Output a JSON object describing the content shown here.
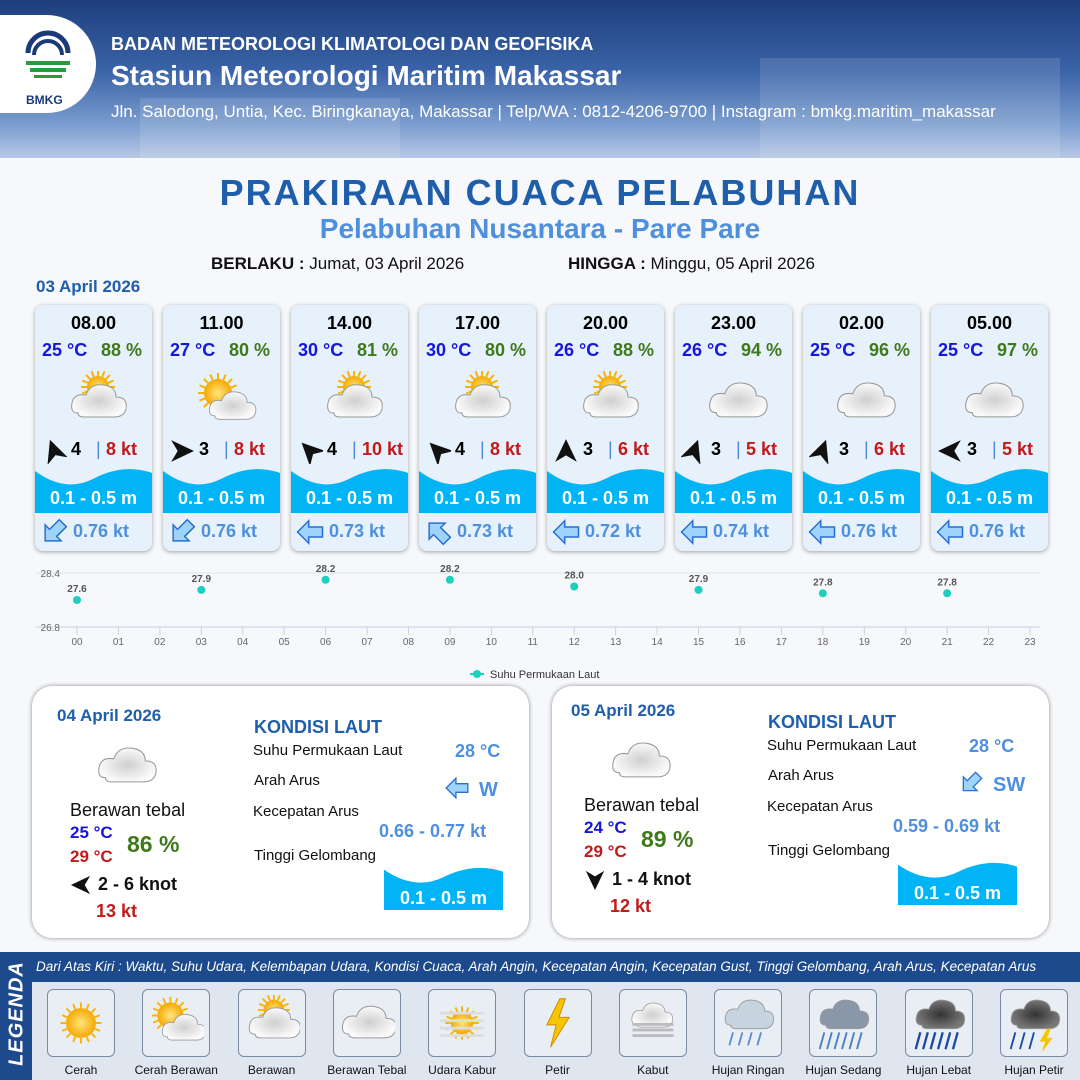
{
  "header": {
    "agency": "BADAN METEOROLOGI KLIMATOLOGI DAN GEOFISIKA",
    "station": "Stasiun Meteorologi Maritim Makassar",
    "address": "Jln. Salodong, Untia, Kec. Biringkanaya, Makassar | Telp/WA : 0812-4206-9700 | Instagram : bmkg.maritim_makassar",
    "logo_text": "BMKG"
  },
  "title": "PRAKIRAAN CUACA PELABUHAN",
  "subtitle": "Pelabuhan Nusantara - Pare Pare",
  "validity": {
    "from_label": "BERLAKU :",
    "from": "Jumat, 03 April 2026",
    "to_label": "HINGGA :",
    "to": "Minggu, 05 April 2026"
  },
  "day1_date": "03 April 2026",
  "colors": {
    "title": "#1e5eab",
    "temp": "#1515e0",
    "humidity": "#3f7a1a",
    "gust": "#c21a1a",
    "wave": "#00b4f5",
    "current": "#4f8fe0",
    "sst": "#1ecfc0"
  },
  "forecasts": [
    {
      "time": "08.00",
      "temp": "25 °C",
      "humidity": "88 %",
      "icon": "berawan",
      "wind_dir_deg": 340,
      "wind_speed": "4",
      "gust": "8 kt",
      "wave": "0.1 - 0.5 m",
      "current_dir_deg": 225,
      "current_speed": "0.76 kt"
    },
    {
      "time": "11.00",
      "temp": "27 °C",
      "humidity": "80 %",
      "icon": "cerah-berawan",
      "wind_dir_deg": 90,
      "wind_speed": "3",
      "gust": "8 kt",
      "wave": "0.1 - 0.5 m",
      "current_dir_deg": 225,
      "current_speed": "0.76 kt"
    },
    {
      "time": "14.00",
      "temp": "30 °C",
      "humidity": "81 %",
      "icon": "berawan",
      "wind_dir_deg": 315,
      "wind_speed": "4",
      "gust": "10 kt",
      "wave": "0.1 - 0.5 m",
      "current_dir_deg": 270,
      "current_speed": "0.73 kt"
    },
    {
      "time": "17.00",
      "temp": "30 °C",
      "humidity": "80 %",
      "icon": "berawan",
      "wind_dir_deg": 315,
      "wind_speed": "4",
      "gust": "8 kt",
      "wave": "0.1 - 0.5 m",
      "current_dir_deg": 315,
      "current_speed": "0.73 kt"
    },
    {
      "time": "20.00",
      "temp": "26 °C",
      "humidity": "88 %",
      "icon": "berawan",
      "wind_dir_deg": 0,
      "wind_speed": "3",
      "gust": "6 kt",
      "wave": "0.1 - 0.5 m",
      "current_dir_deg": 270,
      "current_speed": "0.72 kt"
    },
    {
      "time": "23.00",
      "temp": "26 °C",
      "humidity": "94 %",
      "icon": "berawan-tebal",
      "wind_dir_deg": 20,
      "wind_speed": "3",
      "gust": "5 kt",
      "wave": "0.1 - 0.5 m",
      "current_dir_deg": 270,
      "current_speed": "0.74 kt"
    },
    {
      "time": "02.00",
      "temp": "25 °C",
      "humidity": "96 %",
      "icon": "berawan-tebal",
      "wind_dir_deg": 20,
      "wind_speed": "3",
      "gust": "6 kt",
      "wave": "0.1 - 0.5 m",
      "current_dir_deg": 270,
      "current_speed": "0.76 kt"
    },
    {
      "time": "05.00",
      "temp": "25 °C",
      "humidity": "97 %",
      "icon": "berawan-tebal",
      "wind_dir_deg": 270,
      "wind_speed": "3",
      "gust": "5 kt",
      "wave": "0.1 - 0.5 m",
      "current_dir_deg": 270,
      "current_speed": "0.76 kt"
    }
  ],
  "chart_data": {
    "type": "scatter",
    "x_ticks": [
      "00",
      "01",
      "02",
      "03",
      "04",
      "05",
      "06",
      "07",
      "08",
      "09",
      "10",
      "11",
      "12",
      "13",
      "14",
      "15",
      "16",
      "17",
      "18",
      "19",
      "20",
      "21",
      "22",
      "23"
    ],
    "x": [
      0,
      3,
      6,
      9,
      12,
      15,
      18,
      21
    ],
    "series": [
      {
        "name": "Suhu Permukaan Laut",
        "values": [
          27.6,
          27.9,
          28.2,
          28.2,
          28.0,
          27.9,
          27.8,
          27.8
        ]
      }
    ],
    "y_ticks": [
      "28.4",
      "26.8"
    ],
    "ylim": [
      26.8,
      28.4
    ],
    "xlim": [
      0,
      23
    ],
    "grid": true,
    "legend": "bottom"
  },
  "daily": [
    {
      "date": "04 April 2026",
      "icon": "berawan-tebal",
      "condition": "Berawan tebal",
      "temp_min": "25 °C",
      "temp_max": "29 °C",
      "humidity": "86 %",
      "wind_dir_deg": 270,
      "wind": "2  - 6 knot",
      "gust": "13 kt",
      "sea": {
        "title": "KONDISI LAUT",
        "sst_label": "Suhu Permukaan Laut",
        "sst": "28 °C",
        "dir_label": "Arah Arus",
        "dir": "W",
        "dir_deg": 270,
        "speed_label": "Kecepatan Arus",
        "speed": "0.66  - 0.77 kt",
        "wave_label": "Tinggi Gelombang",
        "wave": "0.1 - 0.5 m"
      }
    },
    {
      "date": "05 April 2026",
      "icon": "berawan-tebal",
      "condition": "Berawan tebal",
      "temp_min": "24 °C",
      "temp_max": "29 °C",
      "humidity": "89 %",
      "wind_dir_deg": 180,
      "wind": "1  - 4 knot",
      "gust": "12 kt",
      "sea": {
        "title": "KONDISI LAUT",
        "sst_label": "Suhu Permukaan Laut",
        "sst": "28 °C",
        "dir_label": "Arah Arus",
        "dir": "SW",
        "dir_deg": 225,
        "speed_label": "Kecepatan Arus",
        "speed": "0.59  - 0.69 kt",
        "wave_label": "Tinggi Gelombang",
        "wave": "0.1 - 0.5 m"
      }
    }
  ],
  "legend": {
    "side_label": "LEGENDA",
    "description": "Dari Atas Kiri : Waktu, Suhu Udara, Kelembapan Udara, Kondisi Cuaca, Arah Angin, Kecepatan Angin, Kecepatan Gust, Tinggi Gelombang, Arah Arus, Kecepatan Arus",
    "items": [
      {
        "label": "Cerah",
        "icon": "cerah"
      },
      {
        "label": "Cerah Berawan",
        "icon": "cerah-berawan"
      },
      {
        "label": "Berawan",
        "icon": "berawan"
      },
      {
        "label": "Berawan Tebal",
        "icon": "berawan-tebal"
      },
      {
        "label": "Udara Kabur",
        "icon": "udara-kabur"
      },
      {
        "label": "Petir",
        "icon": "petir"
      },
      {
        "label": "Kabut",
        "icon": "kabut"
      },
      {
        "label": "Hujan Ringan",
        "icon": "hujan-ringan"
      },
      {
        "label": "Hujan Sedang",
        "icon": "hujan-sedang"
      },
      {
        "label": "Hujan Lebat",
        "icon": "hujan-lebat"
      },
      {
        "label": "Hujan Petir",
        "icon": "hujan-petir"
      }
    ]
  }
}
